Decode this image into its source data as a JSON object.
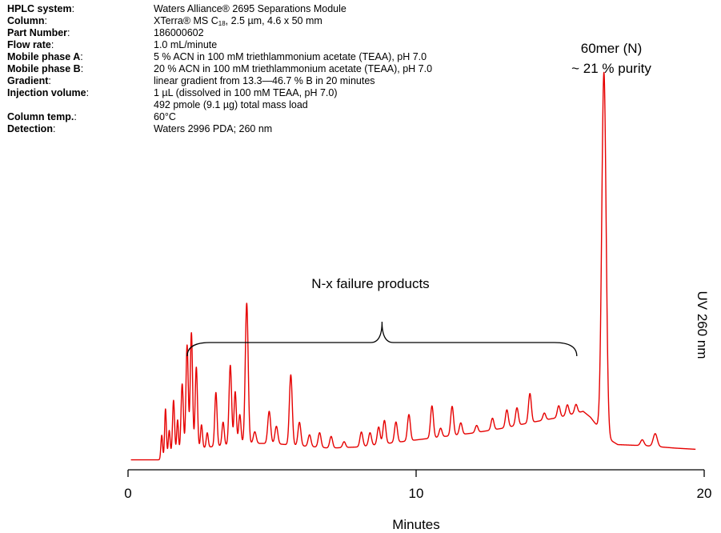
{
  "specs": [
    {
      "key": "HPLC system",
      "value": "Waters Alliance® 2695 Separations Module"
    },
    {
      "key": "Column",
      "value_pre": "XTerra® MS C",
      "value_sub": "18",
      "value_post": ", 2.5 µm, 4.6 x 50 mm"
    },
    {
      "key": "Part Number",
      "value": "186000602"
    },
    {
      "key": "Flow rate",
      "value": "1.0 mL/minute"
    },
    {
      "key": "Mobile phase ",
      "key_bold_suffix": "A",
      "value": "5 % ACN in 100 mM triethlammonium acetate (TEAA), pH 7.0"
    },
    {
      "key": "Mobile phase ",
      "key_bold_suffix": "B",
      "value": "20 % ACN in 100 mM triethlammonium acetate (TEAA), pH 7.0"
    },
    {
      "key": "Gradient",
      "value": "linear gradient from 13.3—46.7 % B in 20 minutes"
    },
    {
      "key": "Injection volume",
      "value": "1 µL (dissolved in 100 mM TEAA, pH 7.0)"
    },
    {
      "key": "",
      "value": "492 pmole (9.1 µg) total mass load"
    },
    {
      "key": "Column temp.",
      "value": "60°C"
    },
    {
      "key": "Detection",
      "value": "Waters 2996 PDA; 260 nm"
    }
  ],
  "chart_data": {
    "type": "line",
    "xlabel": "Minutes",
    "ylabel": "UV 260 nm",
    "xlim": [
      0,
      20
    ],
    "xticks": [
      0,
      10,
      20
    ],
    "color": "#e60000",
    "annotations": {
      "main_peak_line1": "60mer (N)",
      "main_peak_line2": "~ 21 % purity",
      "failure_products": "N-x failure products",
      "brace_range_minutes": [
        1.0,
        15.8
      ]
    },
    "baseline_points": [
      [
        0.1,
        0.002
      ],
      [
        1.2,
        0.002
      ],
      [
        1.4,
        0.012
      ],
      [
        2.0,
        0.018
      ],
      [
        3.0,
        0.025
      ],
      [
        4.0,
        0.03
      ],
      [
        5.0,
        0.03
      ],
      [
        6.0,
        0.026
      ],
      [
        7.0,
        0.022
      ],
      [
        8.0,
        0.024
      ],
      [
        9.0,
        0.03
      ],
      [
        10.0,
        0.036
      ],
      [
        11.0,
        0.042
      ],
      [
        12.0,
        0.048
      ],
      [
        13.0,
        0.056
      ],
      [
        14.0,
        0.066
      ],
      [
        15.0,
        0.075
      ],
      [
        15.8,
        0.085
      ],
      [
        16.05,
        0.075
      ],
      [
        16.6,
        0.04
      ],
      [
        17.0,
        0.028
      ],
      [
        18.0,
        0.026
      ],
      [
        19.0,
        0.022
      ],
      [
        19.7,
        0.02
      ]
    ],
    "peaks": [
      {
        "rt": 1.17,
        "height": 0.042,
        "width": 0.03
      },
      {
        "rt": 1.3,
        "height": 0.082,
        "width": 0.03
      },
      {
        "rt": 1.43,
        "height": 0.04,
        "width": 0.03
      },
      {
        "rt": 1.58,
        "height": 0.09,
        "width": 0.035
      },
      {
        "rt": 1.72,
        "height": 0.055,
        "width": 0.03
      },
      {
        "rt": 1.88,
        "height": 0.115,
        "width": 0.04
      },
      {
        "rt": 2.05,
        "height": 0.18,
        "width": 0.04
      },
      {
        "rt": 2.2,
        "height": 0.2,
        "width": 0.04
      },
      {
        "rt": 2.37,
        "height": 0.14,
        "width": 0.04
      },
      {
        "rt": 2.55,
        "height": 0.04,
        "width": 0.035
      },
      {
        "rt": 2.75,
        "height": 0.025,
        "width": 0.035
      },
      {
        "rt": 3.05,
        "height": 0.092,
        "width": 0.04
      },
      {
        "rt": 3.3,
        "height": 0.04,
        "width": 0.04
      },
      {
        "rt": 3.55,
        "height": 0.136,
        "width": 0.045
      },
      {
        "rt": 3.72,
        "height": 0.09,
        "width": 0.04
      },
      {
        "rt": 3.88,
        "height": 0.05,
        "width": 0.04
      },
      {
        "rt": 4.12,
        "height": 0.24,
        "width": 0.05
      },
      {
        "rt": 4.4,
        "height": 0.02,
        "width": 0.05
      },
      {
        "rt": 4.9,
        "height": 0.055,
        "width": 0.05
      },
      {
        "rt": 5.15,
        "height": 0.03,
        "width": 0.05
      },
      {
        "rt": 5.65,
        "height": 0.12,
        "width": 0.05
      },
      {
        "rt": 5.95,
        "height": 0.04,
        "width": 0.05
      },
      {
        "rt": 6.3,
        "height": 0.02,
        "width": 0.05
      },
      {
        "rt": 6.65,
        "height": 0.025,
        "width": 0.05
      },
      {
        "rt": 7.05,
        "height": 0.02,
        "width": 0.05
      },
      {
        "rt": 7.5,
        "height": 0.01,
        "width": 0.05
      },
      {
        "rt": 8.1,
        "height": 0.025,
        "width": 0.05
      },
      {
        "rt": 8.4,
        "height": 0.022,
        "width": 0.05
      },
      {
        "rt": 8.7,
        "height": 0.03,
        "width": 0.05
      },
      {
        "rt": 8.9,
        "height": 0.04,
        "width": 0.05
      },
      {
        "rt": 9.3,
        "height": 0.035,
        "width": 0.05
      },
      {
        "rt": 9.75,
        "height": 0.045,
        "width": 0.05
      },
      {
        "rt": 10.55,
        "height": 0.055,
        "width": 0.05
      },
      {
        "rt": 10.85,
        "height": 0.015,
        "width": 0.05
      },
      {
        "rt": 11.25,
        "height": 0.05,
        "width": 0.05
      },
      {
        "rt": 11.55,
        "height": 0.02,
        "width": 0.05
      },
      {
        "rt": 12.1,
        "height": 0.012,
        "width": 0.05
      },
      {
        "rt": 12.65,
        "height": 0.02,
        "width": 0.05
      },
      {
        "rt": 13.15,
        "height": 0.03,
        "width": 0.05
      },
      {
        "rt": 13.5,
        "height": 0.03,
        "width": 0.05
      },
      {
        "rt": 13.95,
        "height": 0.05,
        "width": 0.05
      },
      {
        "rt": 14.45,
        "height": 0.012,
        "width": 0.05
      },
      {
        "rt": 14.95,
        "height": 0.02,
        "width": 0.05
      },
      {
        "rt": 15.25,
        "height": 0.018,
        "width": 0.05
      },
      {
        "rt": 15.55,
        "height": 0.015,
        "width": 0.05
      },
      {
        "rt": 16.52,
        "height": 0.62,
        "width": 0.075
      },
      {
        "rt": 17.85,
        "height": 0.01,
        "width": 0.06
      },
      {
        "rt": 18.3,
        "height": 0.022,
        "width": 0.07
      }
    ]
  }
}
